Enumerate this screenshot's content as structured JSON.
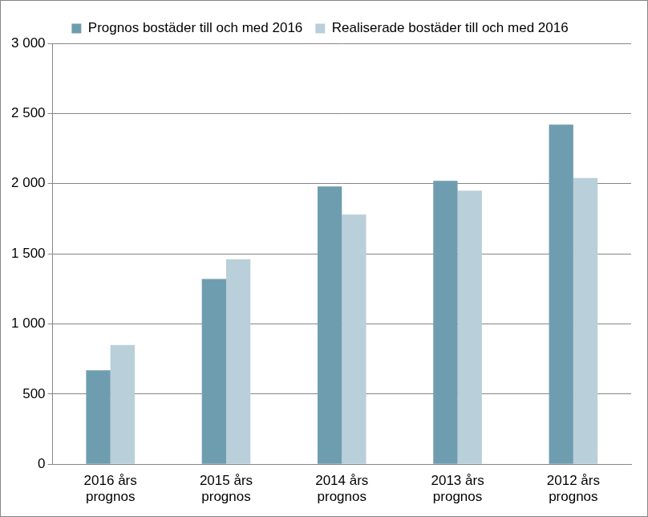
{
  "chart_data": {
    "type": "bar",
    "categories": [
      "2016 års prognos",
      "2015 års prognos",
      "2014 års prognos",
      "2013 års prognos",
      "2012 års prognos"
    ],
    "series": [
      {
        "name": "Prognos bostäder till och med 2016",
        "color": "#6f9db0",
        "values": [
          670,
          1320,
          1980,
          2020,
          2420
        ]
      },
      {
        "name": "Realiserade bostäder till och med 2016",
        "color": "#b9cfd9",
        "values": [
          850,
          1460,
          1780,
          1950,
          2040
        ]
      }
    ],
    "ylim": [
      0,
      3000
    ],
    "yticks": [
      {
        "value": 0,
        "label": "0"
      },
      {
        "value": 500,
        "label": "500"
      },
      {
        "value": 1000,
        "label": "1 000"
      },
      {
        "value": 1500,
        "label": "1 500"
      },
      {
        "value": 2000,
        "label": "2 000"
      },
      {
        "value": 2500,
        "label": "2 500"
      },
      {
        "value": 3000,
        "label": "3 000"
      }
    ],
    "grid": true,
    "legend": "top"
  }
}
